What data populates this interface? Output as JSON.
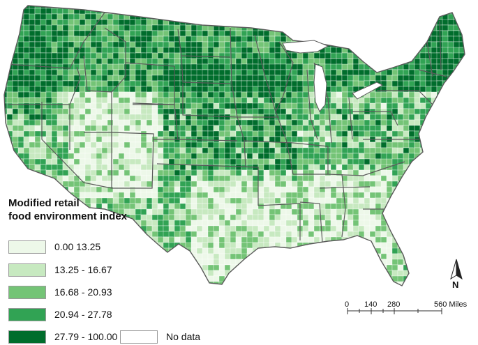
{
  "legend": {
    "title_line1": "Modified retail",
    "title_line2": "food environment index",
    "classes": [
      {
        "label": "0.00  13.25",
        "color": "#edf8e9"
      },
      {
        "label": "13.25 - 16.67",
        "color": "#c7e9c0"
      },
      {
        "label": "16.68 - 20.93",
        "color": "#74c476"
      },
      {
        "label": "20.94 - 27.78",
        "color": "#31a354"
      },
      {
        "label": "27.79 - 100.00",
        "color": "#006d2c"
      }
    ],
    "no_data": {
      "label": "No data",
      "color": "#ffffff"
    }
  },
  "scale_bar": {
    "ticks": [
      "0",
      "140",
      "280",
      "560 Miles"
    ]
  },
  "north_arrow": {
    "label": "N"
  },
  "border_color": "#5a5a5a"
}
